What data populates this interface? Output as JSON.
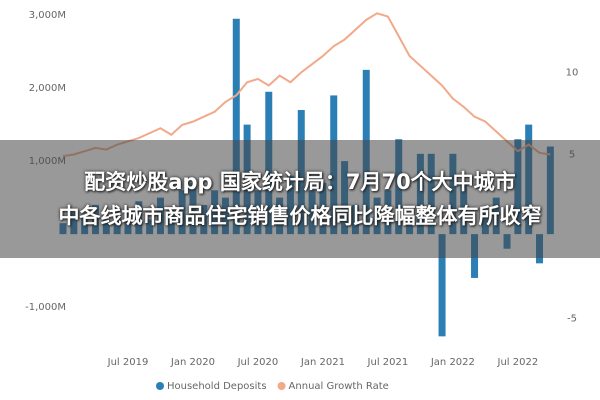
{
  "chart_data": {
    "type": "bar-line",
    "categories": [
      null,
      null,
      null,
      null,
      null,
      null,
      "Jul 2019",
      null,
      null,
      null,
      null,
      null,
      "Jan 2020",
      null,
      null,
      null,
      null,
      null,
      "Jul 2020",
      null,
      null,
      null,
      null,
      null,
      "Jan 2021",
      null,
      null,
      null,
      null,
      null,
      "Jul 2021",
      null,
      null,
      null,
      null,
      null,
      "Jan 2022",
      null,
      null,
      null,
      null,
      null,
      "Jul 2022",
      null,
      null,
      null
    ],
    "series": [
      {
        "name": "Household Deposits",
        "color": "#2b7fb5",
        "kind": "bar",
        "values": [
          150,
          300,
          250,
          400,
          200,
          350,
          300,
          450,
          200,
          500,
          350,
          600,
          700,
          400,
          600,
          500,
          2950,
          1500,
          600,
          1950,
          500,
          800,
          1700,
          600,
          700,
          1900,
          1000,
          400,
          2250,
          500,
          600,
          1300,
          300,
          1100,
          1100,
          -1400,
          1100,
          700,
          -600,
          300,
          500,
          -200,
          1300,
          1500,
          -400,
          1200
        ]
      },
      {
        "name": "Annual Growth Rate",
        "color": "#f2a98a",
        "kind": "line",
        "axis": "y2",
        "values": [
          4.9,
          5.0,
          5.2,
          5.4,
          5.3,
          5.6,
          5.8,
          6.0,
          6.3,
          6.6,
          6.2,
          6.8,
          7.0,
          7.3,
          7.6,
          8.2,
          8.6,
          9.4,
          9.6,
          9.2,
          9.8,
          9.4,
          10.0,
          10.5,
          11.0,
          11.6,
          12.0,
          12.6,
          13.2,
          13.6,
          13.4,
          12.2,
          11.0,
          10.4,
          9.8,
          9.2,
          8.4,
          7.9,
          7.3,
          7.0,
          6.4,
          5.8,
          5.2,
          5.6,
          5.1,
          5.0
        ]
      }
    ],
    "ylim": [
      -1450,
      3070
    ],
    "yticks": [
      {
        "value": 3000,
        "label": "3,000M"
      },
      {
        "value": 2000,
        "label": "2,000M"
      },
      {
        "value": 1000,
        "label": "1,000M"
      },
      {
        "value": -1000,
        "label": "-1,000M"
      }
    ],
    "y2lim": [
      -6.3,
      13.8
    ],
    "y2ticks": [
      10,
      5,
      -5
    ],
    "legend": "bottom"
  },
  "overlay": {
    "lines": [
      "配资炒股app 国家统计局：7月70个大中城市",
      "中各线城市商品住宅销售价格同比降幅整体有所收窄"
    ]
  }
}
